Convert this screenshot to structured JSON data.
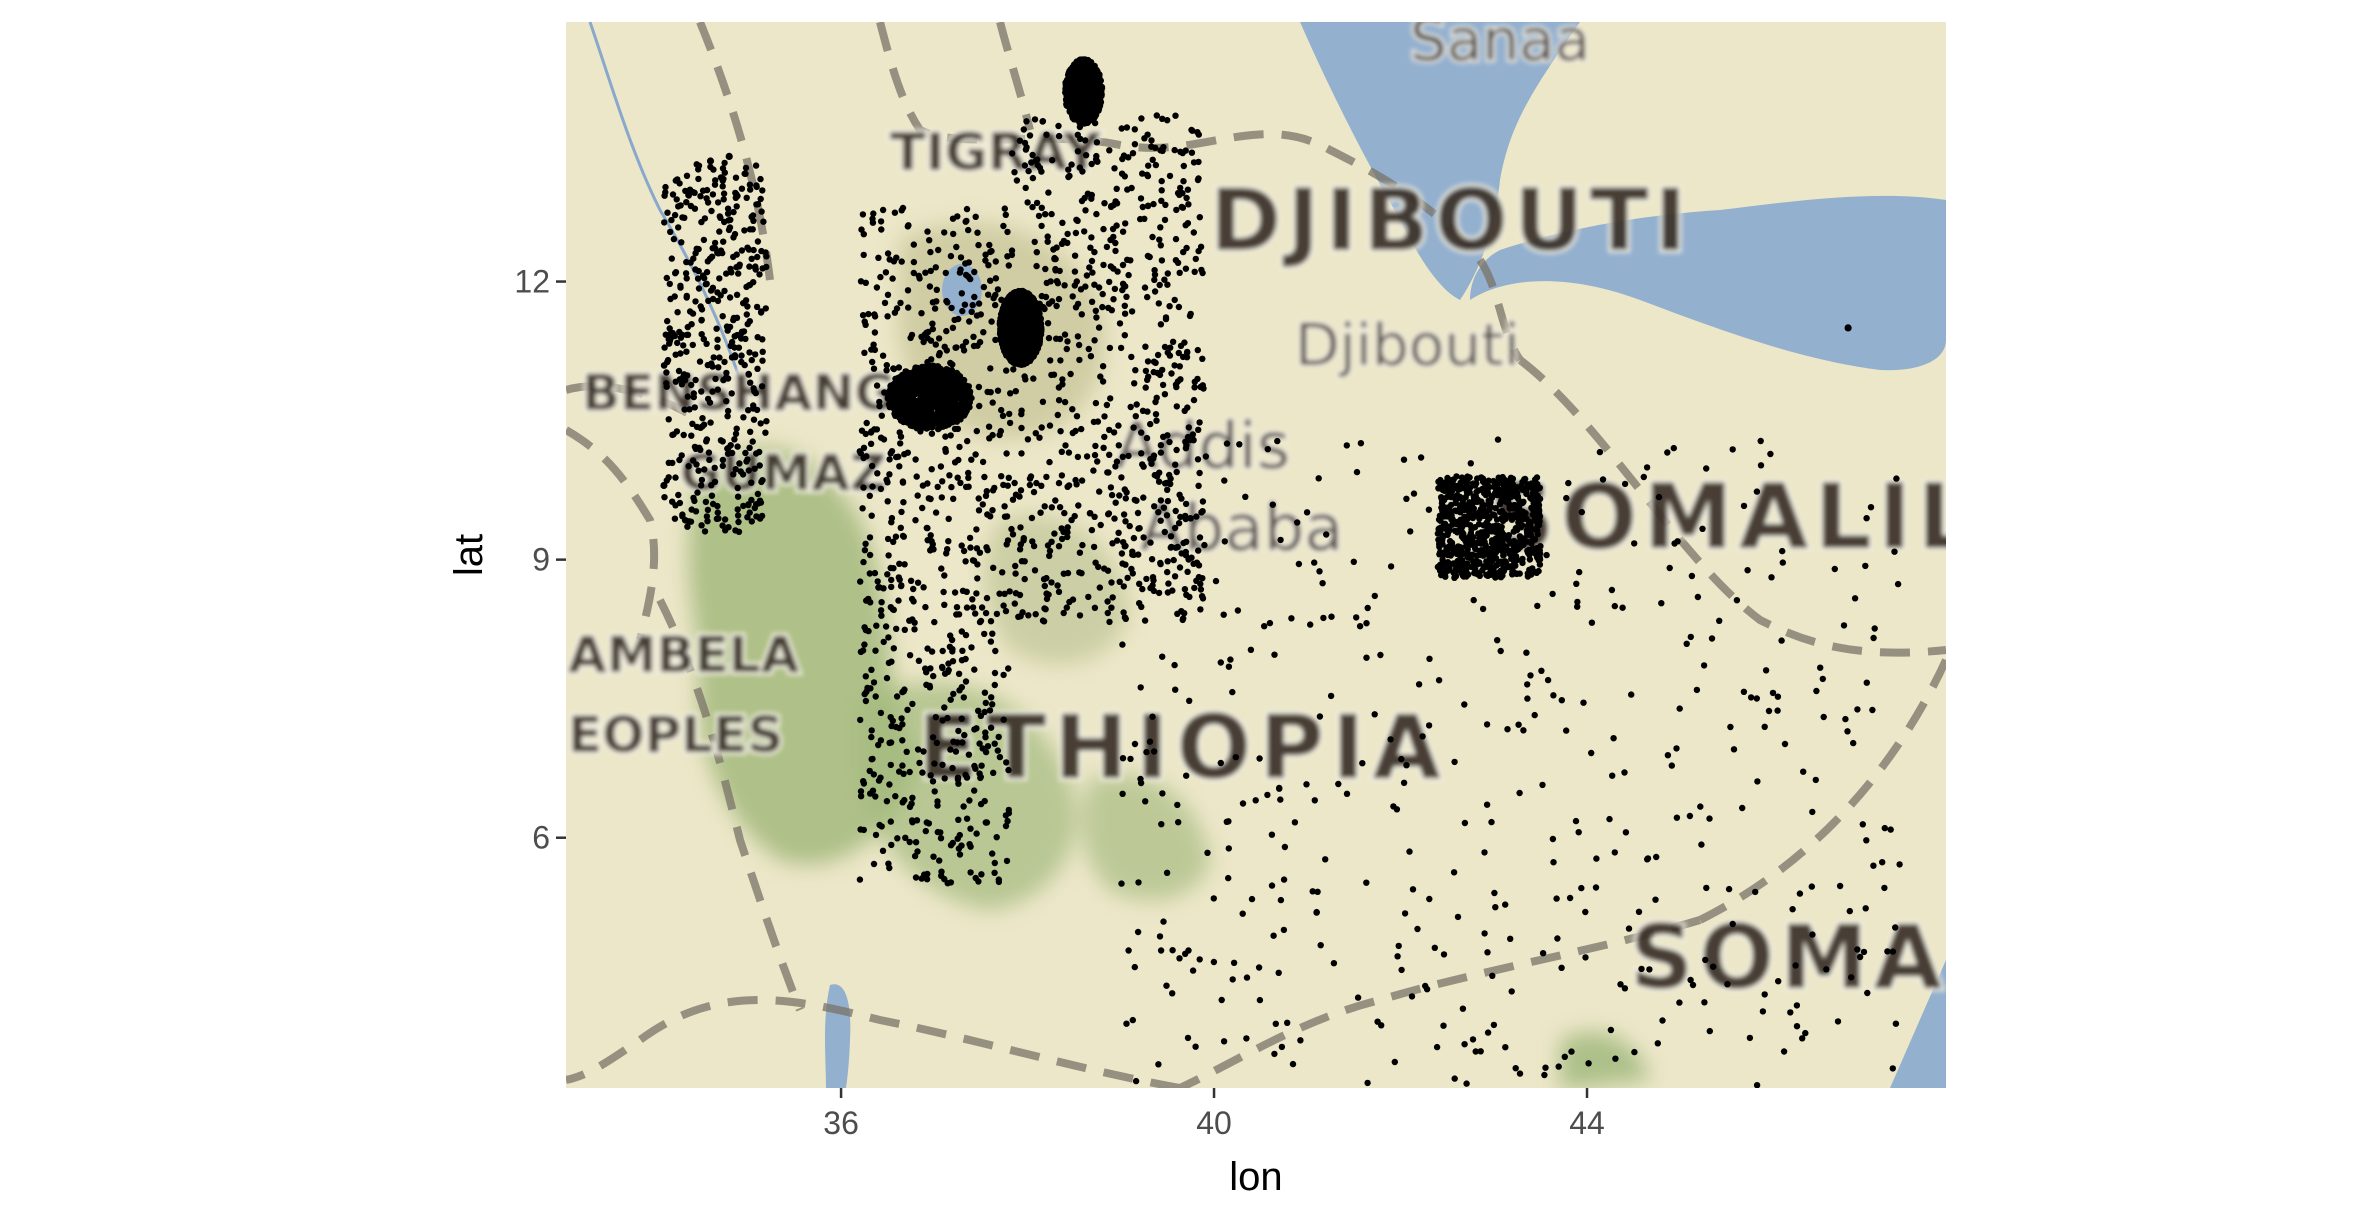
{
  "chart_data": {
    "type": "scatter",
    "title": "",
    "xlabel": "lon",
    "ylabel": "lat",
    "xlim": [
      33.05,
      47.85
    ],
    "ylim": [
      3.3,
      14.8
    ],
    "x_ticks": [
      36,
      40,
      44
    ],
    "y_ticks": [
      6,
      9,
      12
    ],
    "grid": false,
    "legend": "none",
    "basemap": {
      "style": "terrain",
      "labels": [
        "Sanaa",
        "TIGRAY",
        "DJIBOUTI",
        "Djibouti",
        "BENSHANGUL",
        "GUMAZ",
        "Addis",
        "Ababa",
        "SOMALILA",
        "AMBELA",
        "EOPLES",
        "ETHIOPIA",
        "SOMAL"
      ]
    },
    "clusters": [
      {
        "x": [
          37.7,
          38.15
        ],
        "y": [
          11.1,
          11.9
        ],
        "density": "very-high"
      },
      {
        "x": [
          36.5,
          37.4
        ],
        "y": [
          10.4,
          11.1
        ],
        "density": "high"
      },
      {
        "x": [
          38.4,
          38.8
        ],
        "y": [
          13.7,
          14.4
        ],
        "density": "high"
      },
      {
        "x": [
          36.2,
          37.8
        ],
        "y": [
          5.5,
          12.8
        ],
        "density": "medium"
      },
      {
        "x": [
          37.8,
          39.9
        ],
        "y": [
          8.3,
          13.8
        ],
        "density": "medium"
      },
      {
        "x": [
          42.4,
          43.5
        ],
        "y": [
          8.8,
          9.9
        ],
        "density": "medium"
      },
      {
        "x": [
          39.0,
          47.4
        ],
        "y": [
          3.3,
          10.3
        ],
        "density": "sparse"
      },
      {
        "x": [
          34.1,
          35.2
        ],
        "y": [
          9.3,
          13.3
        ],
        "density": "sparse"
      }
    ],
    "outliers": [
      {
        "x": 46.8,
        "y": 11.5
      },
      {
        "x": 34.6,
        "y": 13.3
      },
      {
        "x": 34.8,
        "y": 13.35
      },
      {
        "x": 34.1,
        "y": 9.8
      }
    ],
    "point_color": "#000000"
  }
}
